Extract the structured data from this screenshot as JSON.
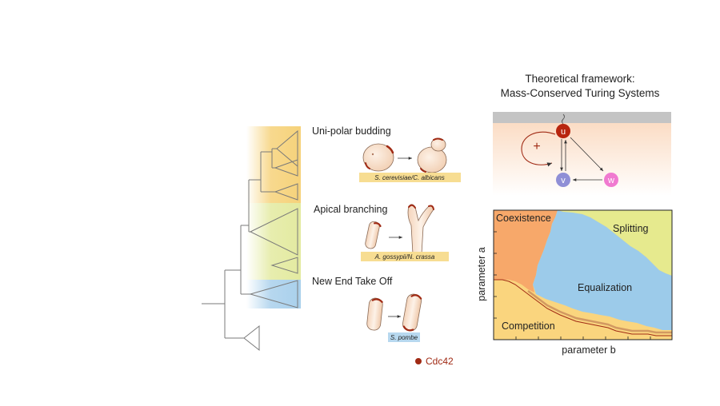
{
  "framework": {
    "title_line1": "Theoretical framework:",
    "title_line2": "Mass-Conserved Turing Systems",
    "nodes": {
      "u": "u",
      "v": "v",
      "w": "w"
    },
    "feedback_symbol": "+"
  },
  "phenotypes": [
    {
      "label": "Uni-polar budding",
      "species": "S. cerevisiae/C. albicans"
    },
    {
      "label": "Apical branching",
      "species": "A. gossypii/N. crassa"
    },
    {
      "label": "New End Take Off",
      "species": "S. pombe"
    }
  ],
  "legend": {
    "marker_label": "Cdc42"
  },
  "phase_diagram": {
    "xlabel": "parameter  b",
    "ylabel": "parameter a",
    "regions": {
      "coexistence": "Coexistence",
      "splitting": "Splitting",
      "equalization": "Equalization",
      "competition": "Competition"
    }
  },
  "colors": {
    "budding_band": "#f6d27a",
    "branching_band": "#e3eaa0",
    "take_off_band": "#a9d0ec",
    "cdc42": "#a02a14",
    "u_node": "#b8250e",
    "v_node": "#8f8fd6",
    "w_node": "#f07ad0",
    "coexistence": "#f7a86a",
    "splitting": "#e6ea8e",
    "equalization": "#9ccbea",
    "competition": "#fad57e",
    "membrane": "#c4c4c4"
  }
}
